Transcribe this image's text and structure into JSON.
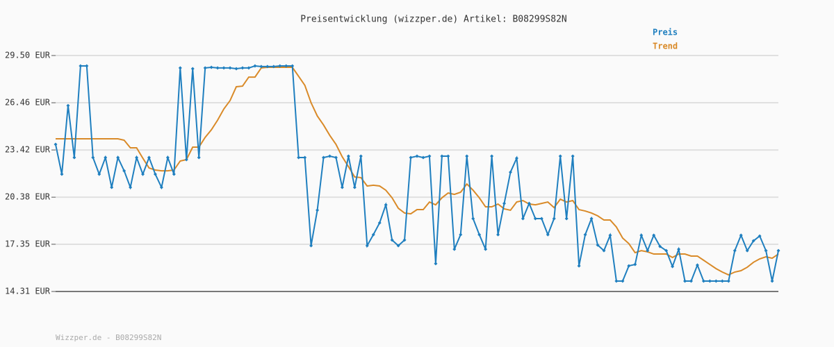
{
  "chart_data": {
    "type": "line",
    "title": "Preisentwicklung (wizzper.de) Artikel: B08299S82N",
    "footer": "Wizzper.de - B08299S82N",
    "ylim": [
      14.31,
      29.5
    ],
    "yticks": [
      {
        "value": 14.31,
        "label": "14.31 EUR"
      },
      {
        "value": 17.35,
        "label": "17.35 EUR"
      },
      {
        "value": 20.38,
        "label": "20.38 EUR"
      },
      {
        "value": 23.42,
        "label": "23.42 EUR"
      },
      {
        "value": 26.46,
        "label": "26.46 EUR"
      },
      {
        "value": 29.5,
        "label": "29.50 EUR"
      }
    ],
    "grid": true,
    "legend": "top-right",
    "series": [
      {
        "name": "Preis",
        "color": "#1f7fbf",
        "markers": true,
        "values": [
          23.78,
          21.86,
          26.28,
          22.93,
          28.83,
          28.83,
          22.93,
          21.86,
          22.93,
          21.01,
          22.93,
          22.08,
          21.01,
          22.93,
          21.86,
          22.93,
          21.86,
          21.01,
          22.93,
          21.86,
          28.7,
          22.8,
          28.65,
          22.93,
          28.7,
          28.74,
          28.7,
          28.7,
          28.7,
          28.65,
          28.7,
          28.7,
          28.83,
          28.79,
          28.79,
          28.79,
          28.83,
          28.83,
          28.83,
          22.93,
          22.93,
          17.26,
          19.54,
          22.93,
          23.02,
          22.93,
          21.01,
          23.02,
          21.01,
          23.02,
          17.26,
          17.97,
          18.73,
          19.89,
          17.62,
          17.26,
          17.62,
          22.93,
          23.02,
          22.93,
          23.02,
          16.1,
          23.02,
          23.02,
          17.03,
          17.97,
          23.02,
          19.0,
          17.97,
          17.03,
          23.02,
          17.97,
          19.98,
          21.99,
          22.89,
          19.0,
          19.98,
          19.0,
          19.0,
          17.97,
          19.0,
          23.02,
          19.0,
          23.02,
          15.96,
          17.97,
          19.0,
          17.3,
          16.94,
          17.93,
          14.98,
          14.98,
          15.96,
          16.05,
          17.93,
          16.94,
          17.93,
          17.21,
          16.94,
          15.92,
          17.03,
          14.98,
          14.98,
          16.01,
          14.98,
          14.98,
          14.98,
          14.98,
          14.98,
          16.94,
          17.93,
          16.94,
          17.57,
          17.88,
          16.94,
          14.98,
          16.94
        ]
      },
      {
        "name": "Trend",
        "color": "#d98a28",
        "markers": false,
        "values": [
          24.14,
          24.14,
          24.14,
          24.14,
          24.14,
          24.14,
          24.14,
          24.14,
          24.14,
          24.14,
          24.14,
          24.05,
          23.56,
          23.56,
          22.89,
          22.26,
          22.13,
          22.08,
          22.08,
          22.13,
          22.71,
          22.8,
          23.6,
          23.6,
          24.23,
          24.72,
          25.34,
          26.06,
          26.6,
          27.49,
          27.53,
          28.11,
          28.11,
          28.7,
          28.74,
          28.74,
          28.74,
          28.74,
          28.74,
          28.16,
          27.58,
          26.46,
          25.61,
          25.03,
          24.36,
          23.78,
          22.98,
          22.35,
          21.68,
          21.64,
          21.1,
          21.15,
          21.1,
          20.83,
          20.34,
          19.67,
          19.36,
          19.31,
          19.58,
          19.58,
          20.07,
          19.89,
          20.34,
          20.65,
          20.56,
          20.7,
          21.23,
          20.83,
          20.34,
          19.76,
          19.76,
          19.94,
          19.63,
          19.54,
          20.07,
          20.16,
          19.94,
          19.89,
          19.98,
          20.07,
          19.71,
          20.25,
          20.07,
          20.16,
          19.58,
          19.49,
          19.36,
          19.18,
          18.91,
          18.91,
          18.46,
          17.75,
          17.39,
          16.81,
          16.94,
          16.86,
          16.72,
          16.72,
          16.72,
          16.5,
          16.72,
          16.72,
          16.59,
          16.59,
          16.32,
          16.05,
          15.78,
          15.56,
          15.38,
          15.56,
          15.65,
          15.87,
          16.19,
          16.41,
          16.54,
          16.45,
          16.72
        ]
      }
    ]
  }
}
